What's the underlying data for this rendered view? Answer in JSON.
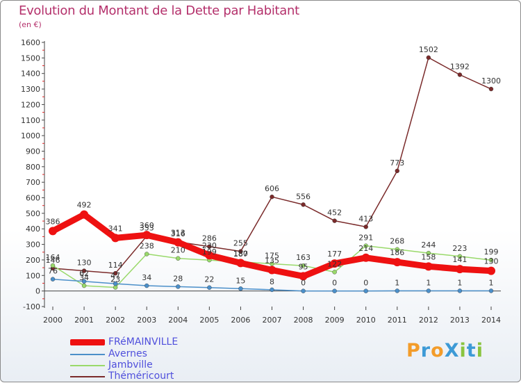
{
  "title": "Evolution du Montant de la Dette par Habitant",
  "unit_label": "(en €)",
  "logo_text": "ProXiti",
  "colors": {
    "title": "#b4306b",
    "legend_text": "#4f4fdc",
    "axis": "#444444",
    "logo_letters": [
      "#f39c2a",
      "#3d9ad6",
      "#f39c2a",
      "#3d9ad6",
      "#8ac43f",
      "#3d9ad6",
      "#8ac43f"
    ]
  },
  "chart_data": {
    "type": "line",
    "x": [
      "2000",
      "2001",
      "2002",
      "2003",
      "2004",
      "2005",
      "2006",
      "2007",
      "2008",
      "2009",
      "2010",
      "2011",
      "2012",
      "2013",
      "2014"
    ],
    "ylim": [
      -100,
      1600
    ],
    "yticks": [
      "-100",
      "0",
      "100",
      "200",
      "300",
      "400",
      "500",
      "600",
      "700",
      "800",
      "900",
      "1000",
      "1100",
      "1200",
      "1300",
      "1400",
      "1500",
      "1600"
    ],
    "grid": false,
    "legend_position": "bottom-left",
    "series": [
      {
        "name": "FRéMAINVILLE",
        "color": "#ee1111",
        "values": [
          386,
          492,
          341,
          360,
          313,
          230,
          180,
          135,
          95,
          177,
          214,
          186,
          158,
          141,
          130
        ],
        "labels": [
          "386",
          "492",
          "341",
          "360",
          "313",
          "230",
          "180",
          "135",
          "95",
          "177",
          "214",
          "186",
          "158",
          "141",
          "130"
        ]
      },
      {
        "name": "Avernes",
        "color": "#4b8fc9",
        "values": [
          76,
          62,
          47,
          34,
          28,
          22,
          15,
          8,
          0,
          0,
          0,
          1,
          1,
          1,
          1
        ],
        "labels": [
          "76",
          "62",
          "47",
          "34",
          "28",
          "22",
          "15",
          "8",
          "0",
          "0",
          "0",
          "1",
          "1",
          "1",
          "1"
        ]
      },
      {
        "name": "Jambville",
        "color": "#99d96a",
        "values": [
          164,
          34,
          23,
          238,
          210,
          199,
          187,
          175,
          163,
          122,
          291,
          268,
          244,
          223,
          199
        ],
        "labels": [
          "164",
          "34",
          "23",
          "238",
          "210",
          "199",
          "187",
          "175",
          "163",
          "122",
          "291",
          "268",
          "244",
          "223",
          "199"
        ]
      },
      {
        "name": "Théméricourt",
        "color": "#7a2a2a",
        "values": [
          146,
          130,
          114,
          353,
          316,
          286,
          255,
          606,
          556,
          452,
          413,
          773,
          1502,
          1392,
          1300
        ],
        "labels": [
          "146",
          "130",
          "114",
          "353",
          "316",
          "286",
          "255",
          "606",
          "556",
          "452",
          "413",
          "773",
          "1502",
          "1392",
          "1300"
        ]
      }
    ]
  }
}
